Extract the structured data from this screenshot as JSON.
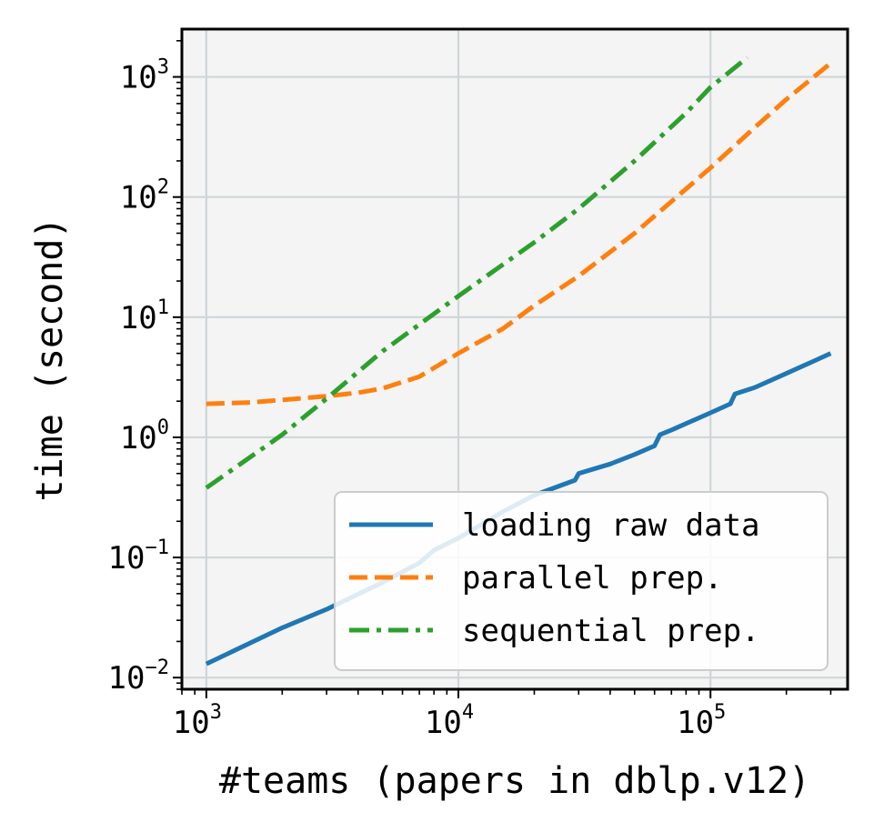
{
  "chart_data": {
    "type": "line",
    "xscale": "log",
    "yscale": "log",
    "xlabel": "#teams (papers in dblp.v12)",
    "ylabel": "time (second)",
    "xlim": [
      800,
      350000
    ],
    "ylim": [
      0.008,
      2500
    ],
    "grid": true,
    "legend_position": "bottom-right",
    "x_ticks": [
      {
        "value": 1000,
        "base": "10",
        "exp": "3"
      },
      {
        "value": 10000,
        "base": "10",
        "exp": "4"
      },
      {
        "value": 100000,
        "base": "10",
        "exp": "5"
      }
    ],
    "y_ticks": [
      {
        "value": 0.01,
        "base": "10",
        "exp": "−2"
      },
      {
        "value": 0.1,
        "base": "10",
        "exp": "−1"
      },
      {
        "value": 1,
        "base": "10",
        "exp": "0"
      },
      {
        "value": 10,
        "base": "10",
        "exp": "1"
      },
      {
        "value": 100,
        "base": "10",
        "exp": "2"
      },
      {
        "value": 1000,
        "base": "10",
        "exp": "3"
      }
    ],
    "series": [
      {
        "name": "loading raw data",
        "color": "#1f77b4",
        "style": "solid",
        "x": [
          1000,
          2000,
          3000,
          5000,
          7000,
          8000,
          10000,
          15000,
          20000,
          29000,
          30000,
          40000,
          50000,
          60000,
          63000,
          70000,
          100000,
          120000,
          125000,
          150000,
          200000,
          250000,
          300000
        ],
        "y": [
          0.013,
          0.026,
          0.037,
          0.062,
          0.09,
          0.115,
          0.145,
          0.24,
          0.33,
          0.44,
          0.5,
          0.6,
          0.72,
          0.85,
          1.05,
          1.15,
          1.6,
          1.9,
          2.3,
          2.6,
          3.4,
          4.2,
          5.0
        ]
      },
      {
        "name": "parallel prep.",
        "color": "#ff7f0e",
        "style": "dashed",
        "x": [
          1000,
          1500,
          2000,
          3000,
          4000,
          5000,
          7000,
          10000,
          15000,
          20000,
          30000,
          50000,
          100000,
          150000,
          200000,
          300000
        ],
        "y": [
          1.9,
          1.95,
          2.05,
          2.2,
          2.35,
          2.55,
          3.2,
          5.0,
          8.0,
          12.5,
          22,
          50,
          175,
          380,
          650,
          1300
        ]
      },
      {
        "name": "sequential prep.",
        "color": "#2ca02c",
        "style": "dashdot",
        "x": [
          1000,
          2000,
          3000,
          5000,
          10000,
          20000,
          30000,
          50000,
          80000,
          100000,
          140000
        ],
        "y": [
          0.38,
          1.05,
          2.1,
          5.2,
          15.0,
          42,
          80,
          200,
          500,
          820,
          1450
        ]
      }
    ]
  }
}
